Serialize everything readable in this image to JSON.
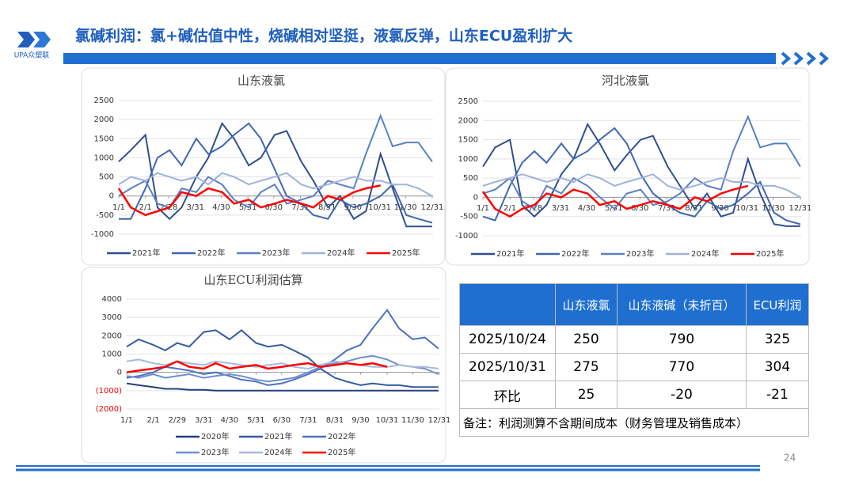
{
  "header": {
    "logo": "UPA众塑联",
    "title": "氯碱利润：氯+碱估值中性，烧碱相对坚挺，液氯反弹，山东ECU盈利扩大"
  },
  "page_number": "24",
  "chart_data": [
    {
      "type": "line",
      "title": "山东液氯",
      "xlim": [
        1,
        366
      ],
      "ylim": [
        -1000,
        2500
      ],
      "yticks": [
        -1000,
        -500,
        0,
        500,
        1000,
        1500,
        2000,
        2500
      ],
      "xticks": [
        {
          "value": 1,
          "label": "1/1"
        },
        {
          "value": 32,
          "label": "2/1"
        },
        {
          "value": 59,
          "label": "2/28"
        },
        {
          "value": 90,
          "label": "3/31"
        },
        {
          "value": 120,
          "label": "4/30"
        },
        {
          "value": 151,
          "label": "5/31"
        },
        {
          "value": 181,
          "label": "6/30"
        },
        {
          "value": 212,
          "label": "7/31"
        },
        {
          "value": 243,
          "label": "8/31"
        },
        {
          "value": 273,
          "label": "9/30"
        },
        {
          "value": 304,
          "label": "10/31"
        },
        {
          "value": 334,
          "label": "11/30"
        },
        {
          "value": 365,
          "label": "12/31"
        }
      ],
      "x": [
        1,
        15,
        32,
        46,
        60,
        74,
        91,
        105,
        121,
        135,
        152,
        166,
        182,
        196,
        213,
        227,
        244,
        258,
        274,
        288,
        305,
        319,
        335,
        349,
        365
      ],
      "series": [
        {
          "name": "2021年",
          "color": "#2f4f8f",
          "values": [
            900,
            1200,
            1600,
            -300,
            -600,
            -300,
            500,
            1000,
            1900,
            1500,
            800,
            1000,
            1600,
            1700,
            900,
            400,
            -300,
            0,
            -600,
            -400,
            1100,
            200,
            -800,
            -800,
            -800
          ]
        },
        {
          "name": "2022年",
          "color": "#3f66b0",
          "values": [
            -600,
            -600,
            200,
            1000,
            1200,
            800,
            1500,
            1100,
            1300,
            1600,
            1900,
            1500,
            700,
            0,
            -200,
            -500,
            -600,
            -100,
            -300,
            -200,
            0,
            300,
            -500,
            -600,
            -700
          ]
        },
        {
          "name": "2023年",
          "color": "#5b80c4",
          "values": [
            0,
            200,
            400,
            -200,
            -300,
            200,
            100,
            500,
            300,
            -100,
            -300,
            100,
            300,
            -200,
            -100,
            0,
            400,
            300,
            200,
            1100,
            2100,
            1300,
            1400,
            1400,
            900
          ]
        },
        {
          "name": "2024年",
          "color": "#9fb2da",
          "values": [
            300,
            500,
            400,
            600,
            500,
            400,
            500,
            300,
            600,
            500,
            300,
            400,
            500,
            600,
            300,
            200,
            300,
            400,
            500,
            400,
            400,
            300,
            300,
            200,
            0
          ]
        },
        {
          "name": "2025年",
          "color": "#ff0000",
          "values": [
            200,
            -300,
            -500,
            -400,
            -300,
            100,
            0,
            200,
            100,
            -200,
            -100,
            -300,
            -200,
            -100,
            -200,
            -300,
            0,
            -100,
            100,
            200,
            275,
            null,
            null,
            null,
            null
          ]
        }
      ]
    },
    {
      "type": "line",
      "title": "河北液氯",
      "xlim": [
        1,
        366
      ],
      "ylim": [
        -1000,
        2500
      ],
      "yticks": [
        -1000,
        -500,
        0,
        500,
        1000,
        1500,
        2000,
        2500
      ],
      "xticks": [
        {
          "value": 1,
          "label": "1/1"
        },
        {
          "value": 32,
          "label": "2/1"
        },
        {
          "value": 59,
          "label": "2/28"
        },
        {
          "value": 90,
          "label": "3/31"
        },
        {
          "value": 120,
          "label": "4/30"
        },
        {
          "value": 151,
          "label": "5/31"
        },
        {
          "value": 181,
          "label": "6/30"
        },
        {
          "value": 212,
          "label": "7/31"
        },
        {
          "value": 243,
          "label": "8/31"
        },
        {
          "value": 273,
          "label": "9/30"
        },
        {
          "value": 304,
          "label": "10/31"
        },
        {
          "value": 334,
          "label": "11/30"
        },
        {
          "value": 365,
          "label": "12/31"
        }
      ],
      "x": [
        1,
        15,
        32,
        46,
        60,
        74,
        91,
        105,
        121,
        135,
        152,
        166,
        182,
        196,
        213,
        227,
        244,
        258,
        274,
        288,
        305,
        319,
        335,
        349,
        365
      ],
      "series": [
        {
          "name": "2021年",
          "color": "#2f4f8f",
          "values": [
            800,
            1300,
            1500,
            -200,
            -500,
            -200,
            600,
            1000,
            1900,
            1400,
            700,
            1100,
            1500,
            1600,
            800,
            300,
            -300,
            100,
            -500,
            -400,
            1000,
            100,
            -700,
            -750,
            -750
          ]
        },
        {
          "name": "2022年",
          "color": "#3f66b0",
          "values": [
            -500,
            -600,
            300,
            900,
            1200,
            900,
            1400,
            1000,
            1200,
            1500,
            1800,
            1400,
            600,
            100,
            -200,
            -400,
            -500,
            -100,
            -300,
            -200,
            100,
            400,
            -400,
            -600,
            -700
          ]
        },
        {
          "name": "2023年",
          "color": "#5b80c4",
          "values": [
            100,
            200,
            500,
            -100,
            -300,
            300,
            100,
            500,
            300,
            0,
            -300,
            100,
            200,
            -200,
            -100,
            100,
            500,
            300,
            200,
            1200,
            2100,
            1300,
            1400,
            1400,
            800
          ]
        },
        {
          "name": "2024年",
          "color": "#9fb2da",
          "values": [
            300,
            400,
            500,
            600,
            500,
            400,
            500,
            400,
            600,
            500,
            300,
            400,
            500,
            600,
            300,
            200,
            300,
            400,
            500,
            400,
            400,
            300,
            300,
            200,
            0
          ]
        },
        {
          "name": "2025年",
          "color": "#ff0000",
          "values": [
            150,
            -300,
            -500,
            -300,
            -200,
            100,
            0,
            200,
            100,
            -200,
            -100,
            -300,
            -200,
            -100,
            -200,
            -300,
            0,
            -100,
            100,
            200,
            300,
            null,
            null,
            null,
            null
          ]
        }
      ]
    },
    {
      "type": "line",
      "title": "山东ECU利润估算",
      "xlim": [
        1,
        366
      ],
      "ylim": [
        -2000,
        4000
      ],
      "yticks": [
        {
          "value": -2000,
          "label": "(2000)"
        },
        {
          "value": -1000,
          "label": "(1000)"
        },
        0,
        1000,
        2000,
        3000,
        4000
      ],
      "negative_tick_color": "#e00000",
      "xticks": [
        {
          "value": 1,
          "label": "1/1"
        },
        {
          "value": 32,
          "label": "2/1"
        },
        {
          "value": 60,
          "label": "2/29"
        },
        {
          "value": 91,
          "label": "3/31"
        },
        {
          "value": 121,
          "label": "4/30"
        },
        {
          "value": 152,
          "label": "5/31"
        },
        {
          "value": 182,
          "label": "6/30"
        },
        {
          "value": 213,
          "label": "7/31"
        },
        {
          "value": 244,
          "label": "8/31"
        },
        {
          "value": 274,
          "label": "9/30"
        },
        {
          "value": 305,
          "label": "10/31"
        },
        {
          "value": 335,
          "label": "11/30"
        },
        {
          "value": 366,
          "label": "12/31"
        }
      ],
      "x": [
        1,
        15,
        32,
        46,
        60,
        74,
        91,
        105,
        121,
        135,
        152,
        166,
        182,
        196,
        213,
        227,
        244,
        258,
        274,
        288,
        305,
        319,
        335,
        349,
        365
      ],
      "series": [
        {
          "name": "2020年",
          "color": "#24407a",
          "values": [
            -600,
            -700,
            -800,
            -900,
            -900,
            -950,
            -950,
            -1000,
            -1000,
            -1000,
            -1000,
            -1000,
            -1000,
            -1000,
            -1000,
            -1000,
            -1000,
            -1000,
            -1000,
            -1000,
            -1000,
            -1000,
            -1000,
            -1000,
            -1000
          ]
        },
        {
          "name": "2021年",
          "color": "#345aa3",
          "values": [
            1400,
            1800,
            1500,
            1200,
            1600,
            1400,
            2200,
            2300,
            1800,
            2300,
            1600,
            1400,
            1500,
            1200,
            800,
            200,
            -300,
            -500,
            -700,
            -600,
            -700,
            -700,
            -800,
            -800,
            -800
          ]
        },
        {
          "name": "2022年",
          "color": "#4a72c0",
          "values": [
            -300,
            -200,
            0,
            300,
            200,
            100,
            -100,
            0,
            -200,
            -400,
            -500,
            -700,
            -600,
            -400,
            -100,
            200,
            700,
            1200,
            1500,
            2400,
            3400,
            2400,
            1800,
            1900,
            1300
          ]
        },
        {
          "name": "2023年",
          "color": "#6f8fd0",
          "values": [
            -200,
            -300,
            -100,
            -300,
            -200,
            -100,
            -300,
            -200,
            -100,
            -200,
            -400,
            -500,
            -400,
            -300,
            0,
            300,
            500,
            600,
            800,
            900,
            700,
            400,
            300,
            200,
            -100
          ]
        },
        {
          "name": "2024年",
          "color": "#a8b9de",
          "values": [
            600,
            700,
            500,
            400,
            600,
            500,
            400,
            600,
            500,
            400,
            300,
            400,
            500,
            300,
            200,
            400,
            600,
            500,
            400,
            300,
            300,
            400,
            300,
            300,
            200
          ]
        },
        {
          "name": "2025年",
          "color": "#ff0000",
          "values": [
            0,
            100,
            200,
            300,
            600,
            300,
            200,
            500,
            200,
            300,
            400,
            200,
            300,
            400,
            500,
            300,
            400,
            500,
            400,
            500,
            304,
            null,
            null,
            null,
            null
          ]
        }
      ]
    }
  ],
  "table": {
    "headers": [
      "山东液氯",
      "山东液碱（未折百）",
      "ECU利润"
    ],
    "rows": [
      [
        "2025/10/24",
        "250",
        "790",
        "325"
      ],
      [
        "2025/10/31",
        "275",
        "770",
        "304"
      ],
      [
        "环比",
        "25",
        "-20",
        "-21"
      ]
    ],
    "note": "备注：利润测算不含期间成本（财务管理及销售成本）"
  }
}
